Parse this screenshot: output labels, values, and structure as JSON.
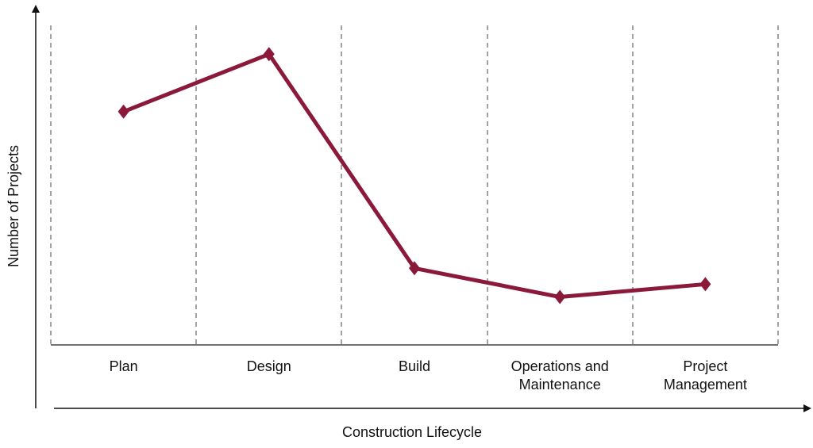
{
  "chart_data": {
    "type": "line",
    "x_label": "Construction Lifecycle",
    "y_label": "Number of Projects",
    "categories": [
      "Plan",
      "Design",
      "Build",
      "Operations and Maintenance",
      "Project Management"
    ],
    "values": [
      73,
      91,
      24,
      15,
      19
    ],
    "color": "#8b1a3a",
    "ylim": [
      0,
      100
    ]
  }
}
